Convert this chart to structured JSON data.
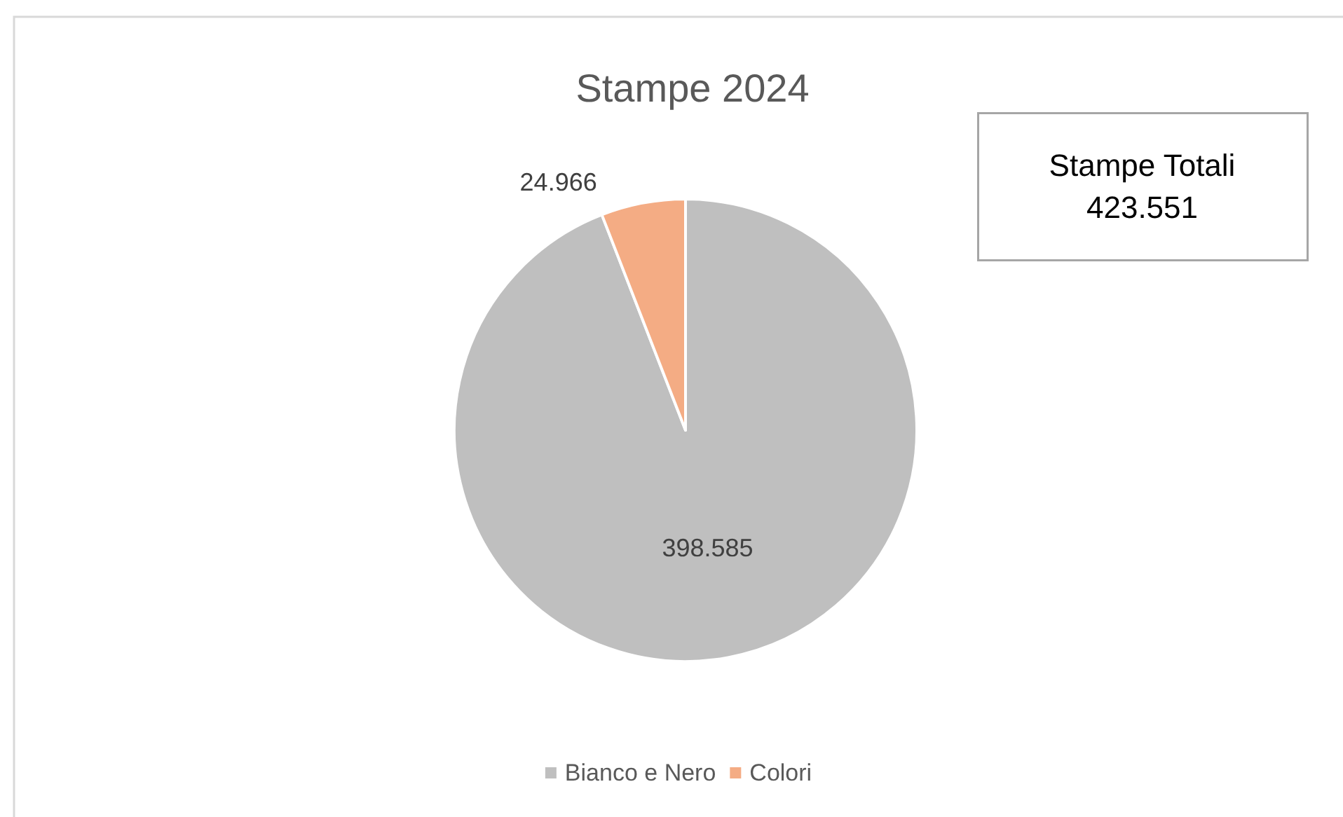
{
  "chart_data": {
    "type": "pie",
    "title": "Stampe 2024",
    "categories": [
      "Bianco e Nero",
      "Colori"
    ],
    "values": [
      398585,
      24966
    ],
    "colors": [
      "#bfbfbf",
      "#f4ac84"
    ],
    "value_labels": [
      "398.585",
      "24.966"
    ],
    "annotations": [
      "Stampe Totali\n423.551"
    ],
    "legend": "bottom"
  }
}
